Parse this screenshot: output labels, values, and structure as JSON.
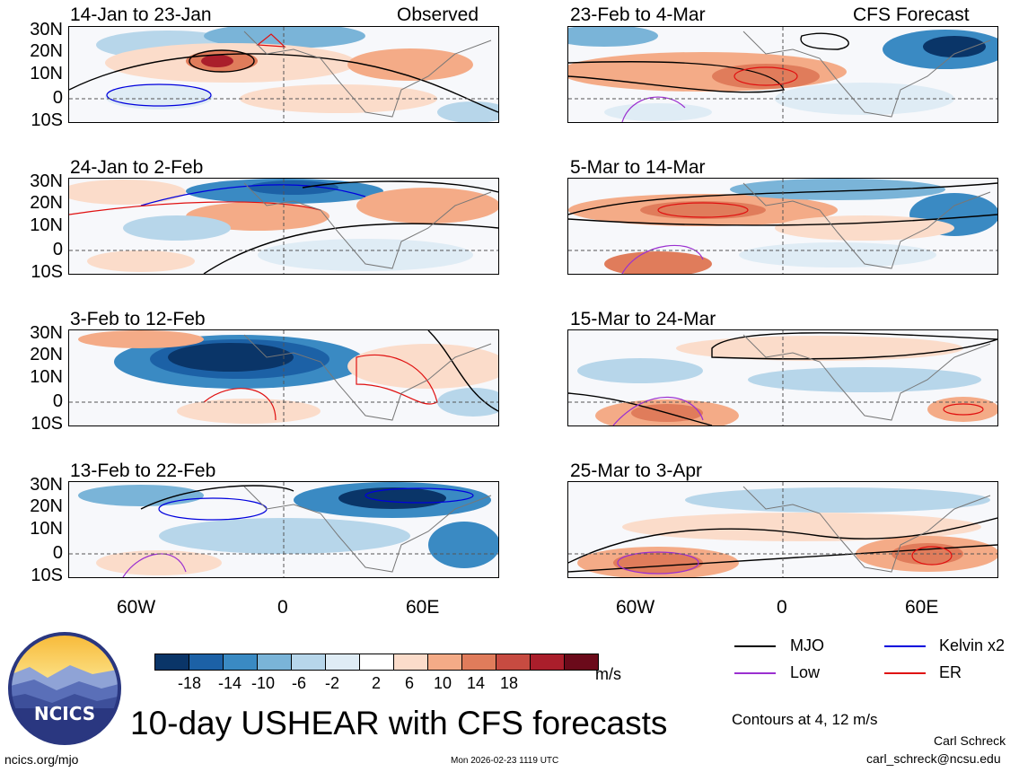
{
  "left_header": {
    "type_label": "Observed"
  },
  "right_header": {
    "type_label": "CFS Forecast"
  },
  "latitude_labels": [
    "30N",
    "20N",
    "10N",
    "0",
    "10S"
  ],
  "longitude_labels": [
    "60W",
    "0",
    "60E"
  ],
  "panels": {
    "left": [
      {
        "period": "14-Jan to 23-Jan"
      },
      {
        "period": "24-Jan to 2-Feb"
      },
      {
        "period": "3-Feb to 12-Feb"
      },
      {
        "period": "13-Feb to 22-Feb"
      }
    ],
    "right": [
      {
        "period": "23-Feb to 4-Mar"
      },
      {
        "period": "5-Mar to 14-Mar"
      },
      {
        "period": "15-Mar to 24-Mar"
      },
      {
        "period": "25-Mar to 3-Apr"
      }
    ]
  },
  "colorbar": {
    "colors": [
      "#0a3568",
      "#1c61a6",
      "#3a8ac3",
      "#7ab4d8",
      "#b7d6ea",
      "#dfecf5",
      "#ffffff",
      "#fbdcca",
      "#f4ab87",
      "#e07c5b",
      "#c74b41",
      "#aa1e2b",
      "#6b0a1a"
    ],
    "tick_labels": [
      "-18",
      "-14",
      "-10",
      "-6",
      "-2",
      "2",
      "6",
      "10",
      "14",
      "18"
    ],
    "units": "m/s"
  },
  "legend": {
    "items": [
      {
        "label": "MJO",
        "color": "#000000"
      },
      {
        "label": "Kelvin x2",
        "color": "#0000dd"
      },
      {
        "label": "Low",
        "color": "#9b30d0"
      },
      {
        "label": "ER",
        "color": "#e01010"
      }
    ],
    "contour_note": "Contours at 4, 12 m/s"
  },
  "logo": {
    "text": "NCICS"
  },
  "main_title": "10-day USHEAR with CFS forecasts",
  "footer": {
    "website": "ncics.org/mjo",
    "timestamp": "Mon 2026-02-23 1119 UTC",
    "author": "Carl Schreck",
    "email": "carl_schreck@ncsu.edu"
  }
}
